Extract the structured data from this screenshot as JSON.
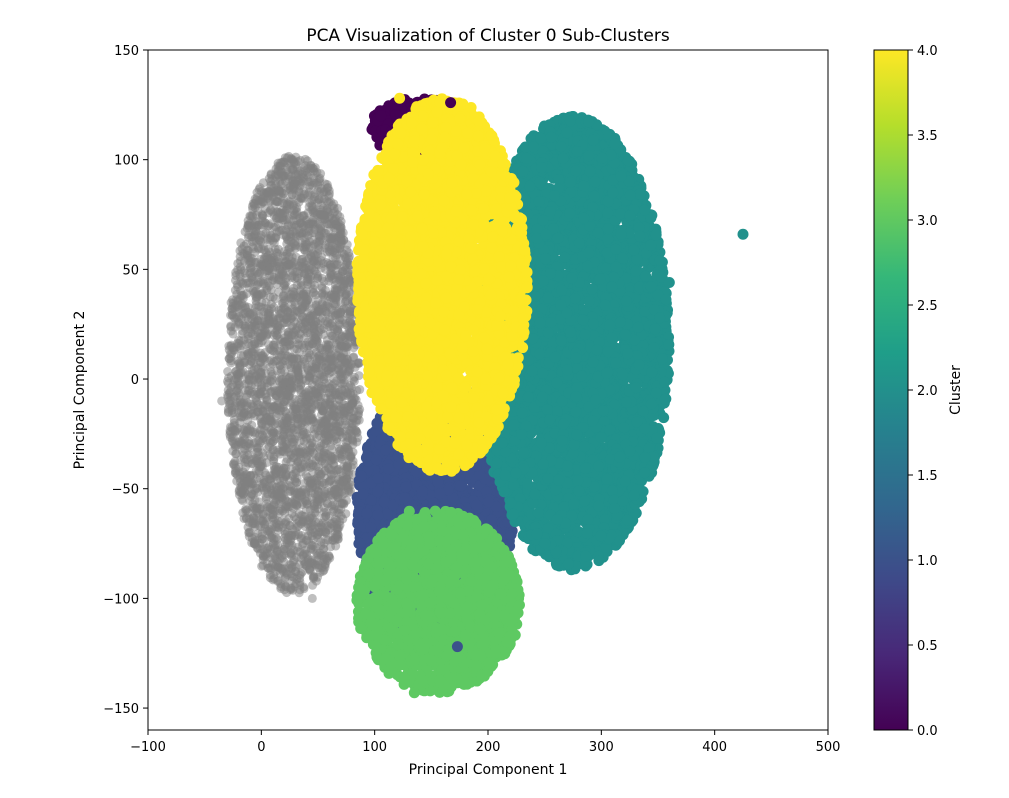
{
  "chart_data": {
    "type": "scatter",
    "title": "PCA Visualization of Cluster 0 Sub-Clusters",
    "xlabel": "Principal Component 1",
    "ylabel": "Principal Component 2",
    "xlim": [
      -100,
      500
    ],
    "ylim": [
      -160,
      150
    ],
    "xticks": [
      -100,
      0,
      100,
      200,
      300,
      400,
      500
    ],
    "yticks": [
      -150,
      -100,
      -50,
      0,
      50,
      100,
      150
    ],
    "grid": false,
    "colorbar": {
      "label": "Cluster",
      "range": [
        0.0,
        4.0
      ],
      "ticks": [
        0.0,
        0.5,
        1.0,
        1.5,
        2.0,
        2.5,
        3.0,
        3.5,
        4.0
      ],
      "colormap": "viridis",
      "stops": [
        "#440154",
        "#482878",
        "#3e4a89",
        "#31688e",
        "#26828e",
        "#1f9e89",
        "#35b779",
        "#6ece58",
        "#b5de2b",
        "#fde725"
      ]
    },
    "series": [
      {
        "color": "#808080",
        "alpha": 0.5,
        "region": {
          "x": [
            -30,
            88
          ],
          "y": [
            -98,
            102
          ]
        }
      },
      {
        "cluster": 0,
        "color": "#440154",
        "region": {
          "x": [
            95,
            185
          ],
          "y": [
            100,
            128
          ]
        }
      },
      {
        "cluster": 1,
        "color": "#3b528b",
        "region": {
          "x": [
            84,
            222
          ],
          "y": [
            -122,
            0
          ]
        }
      },
      {
        "cluster": 2,
        "color": "#21918c",
        "region": {
          "x": [
            190,
            360
          ],
          "y": [
            -87,
            120
          ]
        }
      },
      {
        "cluster": 3,
        "color": "#5ec962",
        "region": {
          "x": [
            84,
            228
          ],
          "y": [
            -143,
            -60
          ]
        }
      },
      {
        "cluster": 4,
        "color": "#fde725",
        "region": {
          "x": [
            84,
            235
          ],
          "y": [
            -43,
            128
          ]
        }
      }
    ],
    "notable_points": [
      {
        "x": 425,
        "y": 66,
        "cluster": 2
      },
      {
        "x": 360,
        "y": 44,
        "cluster": 2
      },
      {
        "x": 325,
        "y": -33,
        "cluster": 2
      },
      {
        "x": 122,
        "y": 128,
        "cluster": 4
      },
      {
        "x": 167,
        "y": 126,
        "cluster": 0
      },
      {
        "x": 135,
        "y": -143,
        "cluster": 3
      },
      {
        "x": 173,
        "y": -122,
        "cluster": 1
      },
      {
        "x": 217,
        "y": -120,
        "cluster": 3
      },
      {
        "x": 45,
        "y": -100
      },
      {
        "x": -35,
        "y": -10
      }
    ]
  }
}
